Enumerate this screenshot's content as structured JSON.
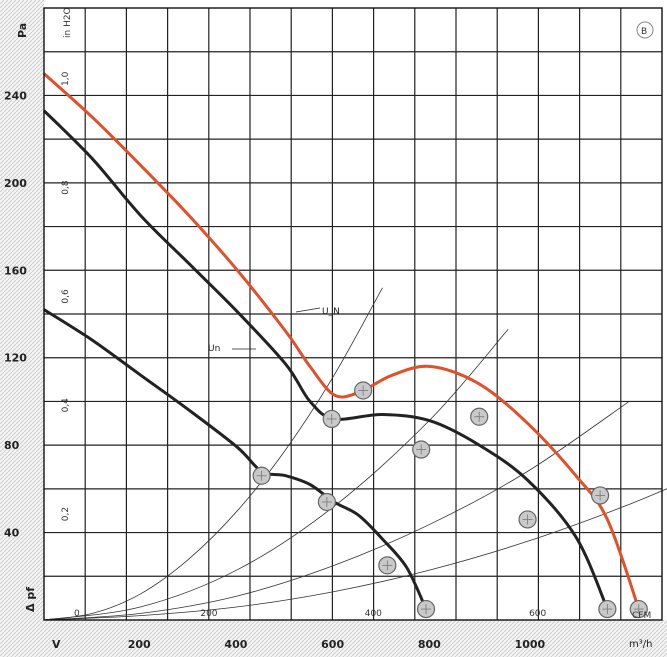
{
  "chart_data": {
    "type": "line",
    "title": "",
    "badge": "B",
    "axes": {
      "y_left": {
        "label": "Pa",
        "ticks": [
          40,
          80,
          120,
          160,
          200,
          240
        ],
        "range": [
          0,
          280
        ]
      },
      "y_inner": {
        "label": "in H2O",
        "ticks": [
          "0,2",
          "0,4",
          "0,6",
          "0,8",
          "1,0"
        ],
        "range": [
          0,
          1.125
        ]
      },
      "x_inner": {
        "label": "CFM",
        "ticks": [
          "0",
          "200",
          "400",
          "600"
        ],
        "range": [
          0,
          752
        ]
      },
      "x_bottom": {
        "label": "m³/h",
        "ticks": [
          200,
          400,
          600,
          800,
          1000
        ],
        "range": [
          0,
          1278
        ]
      },
      "y_bottom_label": "Δ pf",
      "x_bottom_label": "V",
      "grid": true
    },
    "series": [
      {
        "name": "U_N",
        "color": "#e0502a",
        "curve": "top",
        "x": [
          0,
          100,
          200,
          300,
          400,
          500,
          550,
          600,
          650,
          720,
          800,
          900,
          1000,
          1100,
          1165,
          1230
        ],
        "y": [
          250,
          230,
          208,
          185,
          160,
          132,
          116,
          103,
          104,
          112,
          116,
          108,
          90,
          66,
          46,
          5
        ]
      },
      {
        "name": "Un",
        "color": "#222222",
        "curve": "middle",
        "x": [
          0,
          100,
          200,
          300,
          400,
          500,
          550,
          600,
          700,
          800,
          900,
          1000,
          1100,
          1165
        ],
        "y": [
          233,
          211,
          185,
          163,
          141,
          117,
          100,
          92,
          94,
          91,
          80,
          64,
          38,
          5
        ]
      },
      {
        "name": "",
        "color": "#222222",
        "curve": "bottom",
        "x": [
          0,
          100,
          200,
          300,
          400,
          450,
          500,
          550,
          600,
          650,
          700,
          750,
          790
        ],
        "y": [
          142,
          128,
          112,
          96,
          79,
          68,
          66,
          62,
          54,
          48,
          37,
          24,
          5
        ]
      }
    ],
    "operating_points": [
      {
        "x": 790,
        "y": 5,
        "curve": "bottom"
      },
      {
        "x": 710,
        "y": 25,
        "curve": "bottom"
      },
      {
        "x": 585,
        "y": 54,
        "curve": "bottom"
      },
      {
        "x": 450,
        "y": 66,
        "curve": "bottom"
      },
      {
        "x": 1165,
        "y": 5,
        "curve": "middle"
      },
      {
        "x": 1000,
        "y": 46,
        "curve": "middle"
      },
      {
        "x": 780,
        "y": 78,
        "curve": "middle"
      },
      {
        "x": 595,
        "y": 92,
        "curve": "middle"
      },
      {
        "x": 1230,
        "y": 5,
        "curve": "top"
      },
      {
        "x": 1150,
        "y": 57,
        "curve": "top"
      },
      {
        "x": 900,
        "y": 93,
        "curve": "top"
      },
      {
        "x": 660,
        "y": 105,
        "curve": "top"
      }
    ],
    "system_curves": [
      {
        "x": [
          0,
          100,
          200,
          300,
          400,
          500,
          600,
          700
        ],
        "y": [
          0,
          3,
          12,
          28,
          50,
          78,
          112,
          152
        ]
      },
      {
        "x": [
          0,
          200,
          400,
          600,
          800,
          960
        ],
        "y": [
          0,
          6,
          23,
          52,
          92,
          133
        ]
      },
      {
        "x": [
          0,
          200,
          400,
          600,
          800,
          1000,
          1210
        ],
        "y": [
          0,
          3,
          11,
          25,
          44,
          68,
          100
        ]
      },
      {
        "x": [
          0,
          200,
          400,
          600,
          800,
          1000,
          1200,
          1360
        ],
        "y": [
          0,
          2,
          6,
          13,
          23,
          36,
          52,
          67
        ]
      }
    ]
  }
}
